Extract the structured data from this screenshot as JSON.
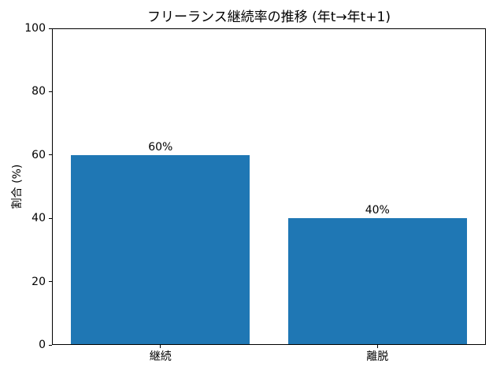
{
  "chart_data": {
    "type": "bar",
    "title": "フリーランス継続率の推移 (年t→年t+1)",
    "categories": [
      "継続",
      "離脱"
    ],
    "values": [
      60,
      40
    ],
    "bar_labels": [
      "60%",
      "40%"
    ],
    "ylabel": "割合 (%)",
    "ylim": [
      0,
      100
    ],
    "yticks": [
      0,
      20,
      40,
      60,
      80,
      100
    ],
    "bar_color": "#1f77b4",
    "grid": "off",
    "legend": "none"
  }
}
